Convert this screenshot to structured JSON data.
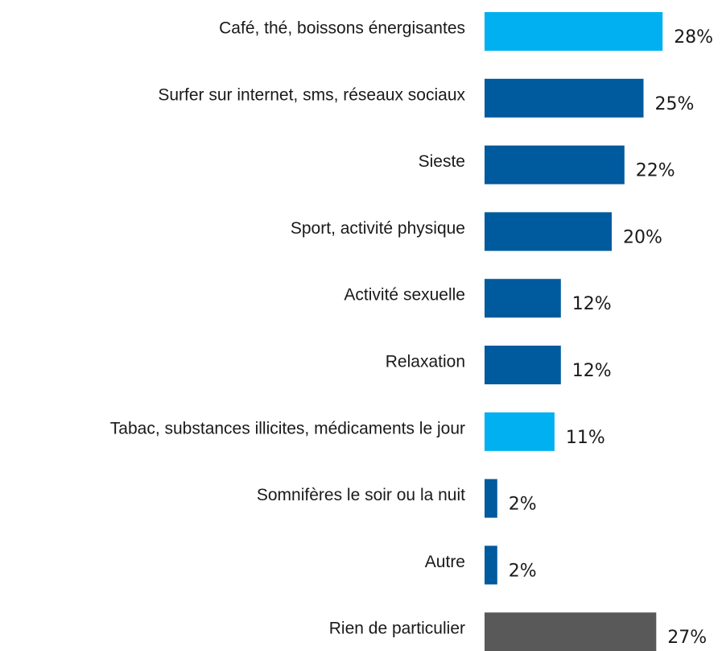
{
  "chart_data": {
    "type": "barh",
    "categories": [
      "Café, thé, boissons énergisantes",
      "Surfer sur internet, sms, réseaux sociaux",
      "Sieste",
      "Sport, activité physique",
      "Activité sexuelle",
      "Relaxation",
      "Tabac, substances illicites, médicaments le jour",
      "Somnifères le soir ou la nuit",
      "Autre",
      "Rien de particulier"
    ],
    "values": [
      28,
      25,
      22,
      20,
      12,
      12,
      11,
      2,
      2,
      27
    ],
    "value_labels": [
      "28%",
      "25%",
      "22%",
      "20%",
      "12%",
      "12%",
      "11%",
      "2%",
      "2%",
      "27%"
    ],
    "colors": [
      "#00b0f0",
      "#005a9e",
      "#005a9e",
      "#005a9e",
      "#005a9e",
      "#005a9e",
      "#00b0f0",
      "#005a9e",
      "#005a9e",
      "#595959"
    ]
  }
}
